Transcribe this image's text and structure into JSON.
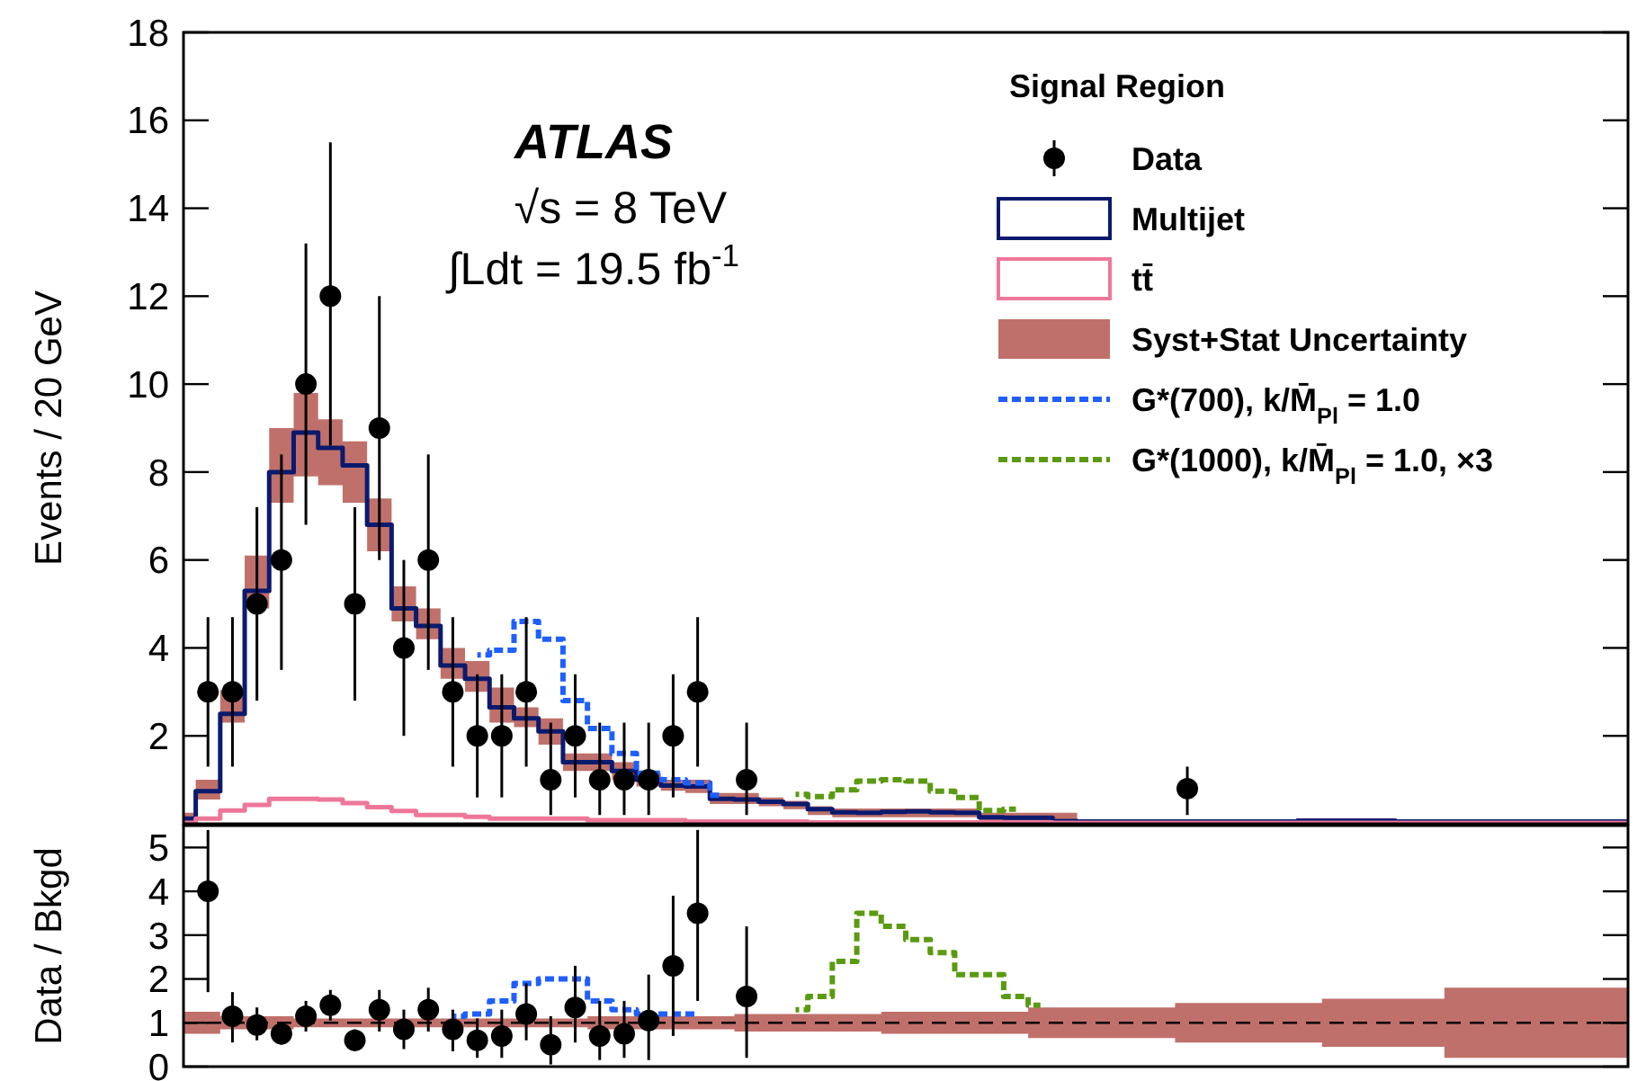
{
  "chart_data": [
    {
      "type": "step",
      "ylabel": "Events / 20 GeV",
      "ylim": [
        0,
        18
      ],
      "yticks": [
        2,
        4,
        6,
        8,
        10,
        12,
        14,
        16,
        18
      ],
      "tick_labels": "y",
      "legend": "top right",
      "legend_title": "Signal Region",
      "annotations": [
        "ATLAS",
        "√s = 8 TeV",
        "∫Ldt = 19.5 fb$^{-1}$"
      ],
      "categories": [
        null,
        null,
        null,
        null,
        null,
        null,
        null,
        null,
        null,
        null,
        null,
        null,
        null,
        null,
        null,
        null,
        null,
        null,
        null,
        null,
        null,
        null,
        null,
        null,
        null,
        null,
        null,
        null,
        null,
        null,
        null,
        null,
        null,
        null,
        null,
        null,
        null,
        null,
        null,
        null,
        null,
        null,
        null,
        null,
        null,
        null,
        null,
        null,
        null,
        null,
        null,
        null,
        null,
        null,
        null,
        null,
        null,
        null,
        null,
        null
      ],
      "series": [
        {
          "name": "Syst+Stat Uncertainty",
          "type": "line",
          "color": "#c0706a",
          "values": [
            null,
            null,
            null,
            null,
            null,
            null,
            null,
            null,
            null,
            null,
            null,
            null,
            null,
            null,
            null,
            null,
            null,
            null,
            null,
            null,
            null,
            null,
            null,
            null,
            null,
            null,
            null,
            null,
            null,
            null,
            null,
            null,
            null,
            null,
            null,
            null,
            null,
            null,
            null,
            null,
            null,
            null,
            null,
            null,
            null,
            null,
            null,
            null,
            null,
            null,
            null,
            null,
            null,
            null,
            null,
            null,
            null,
            null,
            null,
            null
          ],
          "lower": [
            0.02,
            0.55,
            2.3,
            4.9,
            7.3,
            7.9,
            7.7,
            7.3,
            6.2,
            4.6,
            4.2,
            3.3,
            3.0,
            2.3,
            2.2,
            1.8,
            1.2,
            1.2,
            1.0,
            0.85,
            0.75,
            0.7,
            0.45,
            0.45,
            0.4,
            0.33,
            0.2,
            0.15,
            0.15,
            0.15,
            0.15,
            0.15,
            0.15,
            0.05,
            0.05,
            0.05,
            0.0,
            0.0,
            0.0,
            0.0,
            0.0,
            0.0,
            0.0,
            0.0,
            0.0,
            0.0,
            0.0,
            0.0,
            0.0,
            0.0,
            0.0,
            0.0,
            0.0,
            0.0,
            0.0,
            0.0,
            0.0,
            0.0,
            0.0,
            0.0
          ],
          "upper": [
            0.25,
            1.0,
            3.05,
            6.1,
            9.0,
            9.8,
            9.2,
            8.7,
            7.4,
            5.4,
            4.9,
            4.0,
            3.7,
            3.1,
            2.65,
            2.4,
            1.6,
            1.6,
            1.4,
            1.15,
            1.0,
            1.0,
            0.7,
            0.7,
            0.6,
            0.52,
            0.4,
            0.35,
            0.35,
            0.35,
            0.35,
            0.35,
            0.35,
            0.25,
            0.25,
            0.25,
            0.25,
            0.1,
            0.1,
            0.1,
            0.1,
            0.1,
            0.1,
            0.1,
            0.1,
            0.1,
            0.1,
            0.1,
            0.1,
            0.1,
            0.1,
            0.1,
            0.1,
            0.1,
            0.1,
            0.1,
            0.1,
            0.1,
            0.1,
            0.1
          ]
        },
        {
          "name": "Multijet",
          "color": "#0a1a6e",
          "values": [
            0.12,
            0.74,
            2.5,
            5.3,
            8.0,
            8.9,
            8.55,
            8.15,
            6.8,
            4.9,
            4.5,
            3.6,
            3.3,
            2.65,
            2.4,
            2.1,
            1.4,
            1.4,
            1.2,
            1.0,
            0.87,
            0.85,
            0.57,
            0.55,
            0.5,
            0.45,
            0.33,
            0.26,
            0.25,
            0.27,
            0.28,
            0.26,
            0.25,
            0.15,
            0.14,
            0.14,
            0.06,
            0.05,
            0.05,
            0.05,
            0.05,
            0.05,
            0.05,
            0.05,
            0.05,
            0.05,
            0.07,
            0.07,
            0.07,
            0.07,
            0.05,
            0.05,
            0.05,
            0.05,
            0.05,
            0.05,
            0.05,
            0.05,
            0.05,
            0.05
          ]
        },
        {
          "name": "tt̄",
          "color": "#ee7799",
          "values": [
            0.02,
            0.12,
            0.3,
            0.43,
            0.57,
            0.57,
            0.55,
            0.47,
            0.38,
            0.29,
            0.2,
            0.2,
            0.16,
            0.12,
            0.12,
            0.12,
            0.12,
            0.08,
            0.08,
            0.08,
            0.08,
            0.05,
            0.05,
            0.05,
            0.05,
            0.05,
            0.03,
            0.03,
            0.03,
            0.03,
            0.03,
            0.03,
            0.03,
            0.03,
            0.03,
            0.03,
            0.02,
            0.02,
            0.02,
            0.02,
            0.02,
            0.02,
            0.02,
            0.02,
            0.02,
            0.02,
            0.02,
            0.02,
            0.02,
            0.02,
            0.02,
            0.02,
            0.02,
            0.02,
            0.02,
            0.02,
            0.02,
            0.02,
            0.02,
            0.02
          ]
        },
        {
          "name": "G*(700), k/M̄$_{Pl}$ = 1.0",
          "color": "#1f5fff",
          "line_style": "dotted",
          "values": [
            null,
            null,
            null,
            null,
            null,
            null,
            null,
            null,
            null,
            null,
            null,
            null,
            3.84,
            3.95,
            4.6,
            4.2,
            2.8,
            2.17,
            1.6,
            1.15,
            1.0,
            0.93,
            0.65,
            null,
            null,
            null,
            null,
            null,
            null,
            null,
            null,
            null,
            null,
            null,
            null,
            null,
            null,
            null,
            null,
            null,
            null,
            null,
            null,
            null,
            null,
            null,
            null,
            null,
            null,
            null,
            null,
            null,
            null,
            null,
            null,
            null,
            null,
            null,
            null,
            null
          ]
        },
        {
          "name": "G*(1000), k/M̄$_{Pl}$ = 1.0, ×3",
          "color": "#5a9a10",
          "line_style": "dotted",
          "values": [
            null,
            null,
            null,
            null,
            null,
            null,
            null,
            null,
            null,
            null,
            null,
            null,
            null,
            null,
            null,
            null,
            null,
            null,
            null,
            null,
            null,
            null,
            null,
            null,
            null,
            0.67,
            0.62,
            0.77,
            0.97,
            1.0,
            0.97,
            0.74,
            0.6,
            0.3,
            0.33,
            null,
            null,
            null,
            null,
            null,
            null,
            null,
            null,
            null,
            null,
            null,
            null,
            null,
            null,
            null,
            null,
            null,
            null,
            null,
            null,
            null,
            null,
            null,
            null,
            null
          ]
        },
        {
          "name": "Data",
          "type": "scatter",
          "color": "#000000",
          "marker": "circle",
          "values": [
            null,
            3,
            3,
            5,
            6,
            10,
            12,
            5,
            9,
            4,
            6,
            3,
            2,
            2,
            3,
            1,
            2,
            1,
            1,
            1,
            2,
            3,
            null,
            1,
            null,
            null,
            null,
            null,
            null,
            null,
            null,
            null,
            null,
            null,
            null,
            null,
            null,
            null,
            null,
            null,
            null,
            0.8,
            null,
            null,
            null,
            null,
            null,
            null,
            null,
            null,
            null,
            null,
            null,
            null,
            null,
            null,
            null,
            null,
            null,
            null
          ],
          "errors": [
            null,
            [
              1.3,
              4.7
            ],
            [
              1.3,
              4.7
            ],
            [
              2.8,
              7.2
            ],
            [
              3.5,
              8.4
            ],
            [
              6.8,
              13.2
            ],
            [
              8.6,
              15.5
            ],
            [
              2.8,
              7.2
            ],
            [
              6.0,
              12.0
            ],
            [
              2.0,
              6.0
            ],
            [
              3.5,
              8.4
            ],
            [
              1.3,
              4.7
            ],
            [
              0.6,
              3.4
            ],
            [
              0.6,
              3.4
            ],
            [
              1.3,
              4.7
            ],
            [
              0.2,
              2.3
            ],
            [
              0.6,
              3.4
            ],
            [
              0.2,
              2.3
            ],
            [
              0.2,
              2.3
            ],
            [
              0.2,
              2.3
            ],
            [
              0.6,
              3.4
            ],
            [
              1.3,
              4.7
            ],
            null,
            [
              0.2,
              2.3
            ],
            null,
            null,
            null,
            null,
            null,
            null,
            null,
            null,
            null,
            null,
            null,
            null,
            null,
            null,
            null,
            null,
            null,
            [
              0.2,
              1.3
            ],
            null,
            null,
            null,
            null,
            null,
            null,
            null,
            null,
            null,
            null,
            null,
            null,
            null,
            null,
            null,
            null,
            null,
            null
          ]
        }
      ]
    },
    {
      "type": "step",
      "ylabel": "Data / Bkgd",
      "ylim": [
        0,
        5.5
      ],
      "yticks": [
        0,
        1,
        2,
        3,
        4,
        5
      ],
      "tick_labels": "y",
      "categories": [
        null,
        null,
        null,
        null,
        null,
        null,
        null,
        null,
        null,
        null,
        null,
        null,
        null,
        null,
        null,
        null,
        null,
        null,
        null,
        null,
        null,
        null,
        null,
        null,
        null,
        null,
        null,
        null,
        null,
        null,
        null,
        null,
        null,
        null,
        null,
        null,
        null,
        null,
        null,
        null,
        null,
        null,
        null,
        null,
        null,
        null,
        null,
        null,
        null,
        null,
        null,
        null,
        null,
        null,
        null,
        null,
        null,
        null,
        null,
        null
      ],
      "ref_lines": [
        {
          "axis": "y",
          "value": 1,
          "color": "#000000",
          "line_style": "dashed"
        }
      ],
      "series": [
        {
          "type": "line",
          "color": "#c0706a",
          "values": [
            null,
            null,
            null,
            null,
            null,
            null,
            null,
            null,
            null,
            null,
            null,
            null,
            null,
            null,
            null,
            null,
            null,
            null,
            null,
            null,
            null,
            null,
            null,
            null,
            null,
            null,
            null,
            null,
            null,
            null,
            null,
            null,
            null,
            null,
            null,
            null,
            null,
            null,
            null,
            null,
            null,
            null,
            null,
            null,
            null,
            null,
            null,
            null,
            null,
            null,
            null,
            null,
            null,
            null,
            null,
            null,
            null,
            null,
            null,
            null
          ],
          "lower": [
            0.75,
            0.75,
            0.85,
            0.85,
            0.85,
            0.9,
            0.9,
            0.9,
            0.9,
            0.9,
            0.9,
            0.9,
            0.9,
            0.9,
            0.9,
            0.9,
            0.9,
            0.85,
            0.85,
            0.85,
            0.85,
            0.85,
            0.85,
            0.8,
            0.8,
            0.8,
            0.8,
            0.8,
            0.8,
            0.75,
            0.75,
            0.75,
            0.75,
            0.75,
            0.75,
            0.65,
            0.65,
            0.65,
            0.65,
            0.65,
            0.65,
            0.55,
            0.55,
            0.55,
            0.55,
            0.55,
            0.55,
            0.45,
            0.45,
            0.45,
            0.45,
            0.45,
            0.2,
            0.2,
            0.2,
            0.2,
            0.2,
            0.2,
            0.2,
            0.2
          ],
          "upper": [
            1.25,
            1.25,
            1.15,
            1.15,
            1.15,
            1.1,
            1.1,
            1.1,
            1.1,
            1.1,
            1.1,
            1.1,
            1.1,
            1.1,
            1.1,
            1.1,
            1.1,
            1.15,
            1.15,
            1.15,
            1.15,
            1.15,
            1.15,
            1.2,
            1.2,
            1.2,
            1.2,
            1.2,
            1.2,
            1.25,
            1.25,
            1.25,
            1.25,
            1.25,
            1.25,
            1.35,
            1.35,
            1.35,
            1.35,
            1.35,
            1.35,
            1.45,
            1.45,
            1.45,
            1.45,
            1.45,
            1.45,
            1.55,
            1.55,
            1.55,
            1.55,
            1.55,
            1.8,
            1.8,
            1.8,
            1.8,
            1.8,
            1.8,
            1.8,
            1.8
          ]
        },
        {
          "color": "#1f5fff",
          "line_style": "dotted",
          "values": [
            null,
            null,
            null,
            null,
            null,
            null,
            null,
            null,
            null,
            null,
            null,
            1.15,
            1.2,
            1.5,
            1.9,
            2.0,
            2.0,
            1.5,
            1.3,
            1.2,
            1.2,
            1.2,
            null,
            null,
            null,
            null,
            null,
            null,
            null,
            null,
            null,
            null,
            null,
            null,
            null,
            null,
            null,
            null,
            null,
            null,
            null,
            null,
            null,
            null,
            null,
            null,
            null,
            null,
            null,
            null,
            null,
            null,
            null,
            null,
            null,
            null,
            null,
            null,
            null,
            null
          ]
        },
        {
          "color": "#5a9a10",
          "line_style": "dotted",
          "values": [
            null,
            null,
            null,
            null,
            null,
            null,
            null,
            null,
            null,
            null,
            null,
            null,
            null,
            null,
            null,
            null,
            null,
            null,
            null,
            null,
            null,
            null,
            null,
            null,
            null,
            1.3,
            1.6,
            2.4,
            3.5,
            3.2,
            2.9,
            2.6,
            2.1,
            2.1,
            1.6,
            1.4,
            null,
            null,
            null,
            null,
            null,
            null,
            null,
            null,
            null,
            null,
            null,
            null,
            null,
            null,
            null,
            null,
            null,
            null,
            null,
            null,
            null,
            null,
            null,
            null
          ]
        },
        {
          "type": "scatter",
          "color": "#000000",
          "marker": "circle",
          "values": [
            null,
            4.0,
            1.15,
            0.95,
            0.75,
            1.15,
            1.4,
            0.6,
            1.3,
            0.85,
            1.3,
            0.85,
            0.6,
            0.7,
            1.2,
            0.5,
            1.35,
            0.7,
            0.75,
            1.05,
            2.3,
            3.5,
            null,
            1.6,
            null,
            null,
            null,
            null,
            null,
            null,
            null,
            null,
            null,
            null,
            null,
            null,
            null,
            null,
            null,
            null,
            null,
            null,
            null,
            null,
            null,
            null,
            null,
            null,
            null,
            null,
            null,
            null,
            null,
            null,
            null,
            null,
            null,
            null,
            null,
            null
          ],
          "errors": [
            null,
            [
              1.7,
              5.4
            ],
            [
              0.55,
              1.7
            ],
            [
              0.6,
              1.35
            ],
            [
              0.5,
              1.0
            ],
            [
              0.8,
              1.5
            ],
            [
              1.05,
              1.75
            ],
            [
              0.35,
              0.85
            ],
            [
              0.8,
              1.75
            ],
            [
              0.4,
              1.3
            ],
            [
              0.8,
              1.8
            ],
            [
              0.35,
              1.3
            ],
            [
              0.2,
              1.1
            ],
            [
              0.2,
              1.3
            ],
            [
              0.6,
              1.9
            ],
            [
              0.05,
              1.15
            ],
            [
              0.55,
              2.3
            ],
            [
              0.15,
              1.5
            ],
            [
              0.2,
              1.5
            ],
            [
              0.15,
              2.1
            ],
            [
              0.7,
              3.9
            ],
            [
              1.5,
              5.4
            ],
            null,
            [
              0.2,
              3.2
            ],
            null,
            null,
            null,
            null,
            null,
            null,
            null,
            null,
            null,
            null,
            null,
            null,
            null,
            null,
            null,
            null,
            null,
            null,
            null,
            null,
            null,
            null,
            null,
            null,
            null,
            null,
            null,
            null,
            null,
            null,
            null,
            null,
            null,
            null,
            null,
            null
          ]
        }
      ]
    }
  ]
}
